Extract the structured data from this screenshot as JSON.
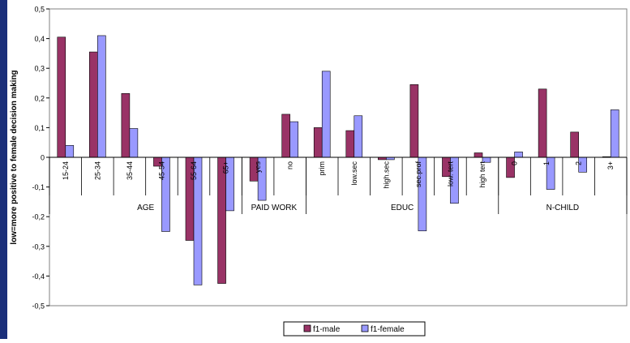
{
  "chart_data": {
    "type": "bar",
    "ylabel": "low=more positive to female decision making",
    "ylim": [
      -0.5,
      0.5
    ],
    "ytick_step": 0.1,
    "ytick_labels": [
      "-0,5",
      "-0,4",
      "-0,3",
      "-0,2",
      "-0,1",
      "0",
      "0,1",
      "0,2",
      "0,3",
      "0,4",
      "0,5"
    ],
    "categories": [
      "15-24",
      "25-34",
      "35-44",
      "45-54",
      "55-64",
      "65+",
      "yes",
      "no",
      "prim",
      "low.sec",
      "high.sec",
      "sec.prof",
      "low. tert",
      "high tert",
      "0",
      "1",
      "2",
      "3+"
    ],
    "groups": [
      {
        "label": "AGE",
        "count": 6
      },
      {
        "label": "PAID WORK",
        "count": 2
      },
      {
        "label": "EDUC",
        "count": 6
      },
      {
        "label": "N-CHILD",
        "count": 4
      }
    ],
    "series": [
      {
        "name": "f1-male",
        "color": "#993366",
        "values": [
          0.405,
          0.355,
          0.215,
          -0.03,
          -0.28,
          -0.425,
          -0.08,
          0.145,
          0.1,
          0.09,
          -0.008,
          0.245,
          -0.065,
          0.015,
          -0.068,
          0.23,
          0.085,
          0.002
        ]
      },
      {
        "name": "f1-female",
        "color": "#9999ff",
        "values": [
          0.04,
          0.41,
          0.097,
          -0.25,
          -0.43,
          -0.18,
          -0.145,
          0.12,
          0.29,
          0.14,
          -0.008,
          -0.248,
          -0.155,
          -0.017,
          0.018,
          -0.108,
          -0.05,
          0.16
        ]
      }
    ],
    "grid": false,
    "legend_position": "bottom-center"
  }
}
